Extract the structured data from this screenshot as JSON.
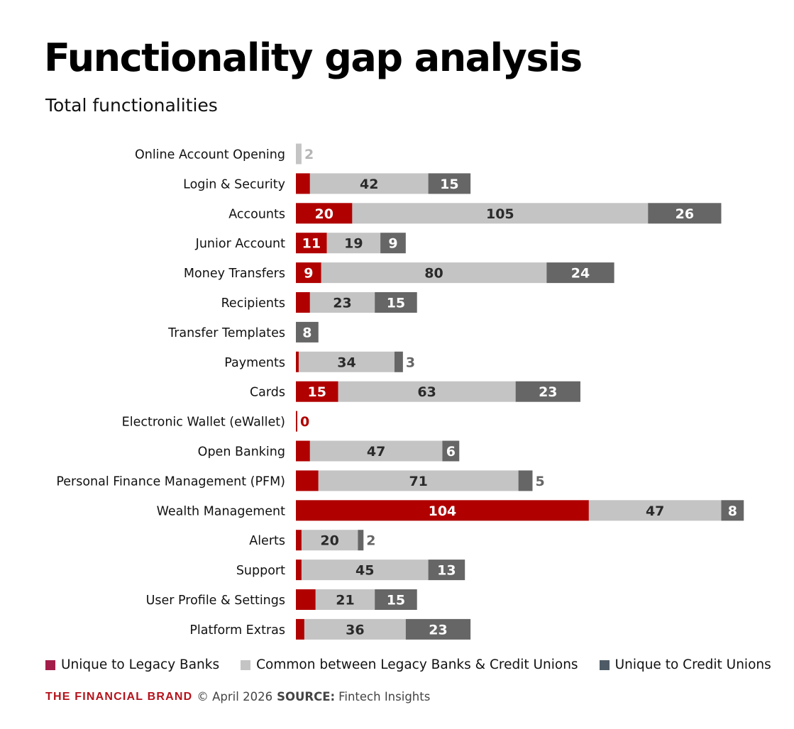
{
  "title": "Functionality gap analysis",
  "subtitle": "Total functionalities",
  "colors": {
    "legacy": "#b00000",
    "common": "#c4c4c4",
    "cu": "#666666",
    "legend_legacy": "#a31d4a",
    "legend_cu": "#4e5b66"
  },
  "legend": {
    "legacy": "Unique to Legacy Banks",
    "common": "Common between Legacy Banks & Credit Unions",
    "cu": "Unique to Credit Unions"
  },
  "footer": {
    "brand": "THE FINANCIAL BRAND",
    "date": "© April 2026",
    "source_label": "SOURCE:",
    "source": "Fintech Insights"
  },
  "chart_data": {
    "type": "bar",
    "orientation": "horizontal",
    "stacked": true,
    "categories": [
      "Online Account Opening",
      "Login & Security",
      "Accounts",
      "Junior Account",
      "Money Transfers",
      "Recipients",
      "Transfer Templates",
      "Payments",
      "Cards",
      "Electronic Wallet (eWallet)",
      "Open Banking",
      "Personal Finance Management (PFM)",
      "Wealth Management",
      "Alerts",
      "Support",
      "User Profile & Settings",
      "Platform Extras"
    ],
    "series": [
      {
        "name": "Unique to Legacy Banks",
        "key": "legacy",
        "values": [
          0,
          5,
          20,
          11,
          9,
          5,
          0,
          1,
          15,
          0,
          5,
          8,
          104,
          2,
          2,
          7,
          3
        ],
        "labels": [
          "",
          "",
          "20",
          "11",
          "9",
          "",
          "",
          "",
          "15",
          "0",
          "",
          "",
          "104",
          "",
          "",
          "",
          ""
        ]
      },
      {
        "name": "Common between Legacy Banks & Credit Unions",
        "key": "common",
        "values": [
          2,
          42,
          105,
          19,
          80,
          23,
          0,
          34,
          63,
          0,
          47,
          71,
          47,
          20,
          45,
          21,
          36
        ],
        "labels": [
          "2",
          "42",
          "105",
          "19",
          "80",
          "23",
          "",
          "34",
          "63",
          "",
          "47",
          "71",
          "47",
          "20",
          "45",
          "21",
          "36"
        ]
      },
      {
        "name": "Unique to Credit Unions",
        "key": "cu",
        "values": [
          0,
          15,
          26,
          9,
          24,
          15,
          8,
          3,
          23,
          0,
          6,
          5,
          8,
          2,
          13,
          15,
          23
        ],
        "labels": [
          "",
          "15",
          "26",
          "9",
          "24",
          "15",
          "8",
          "3",
          "23",
          "",
          "6",
          "5",
          "8",
          "2",
          "13",
          "15",
          "23"
        ]
      }
    ],
    "legend_position": "bottom",
    "grid": false
  }
}
